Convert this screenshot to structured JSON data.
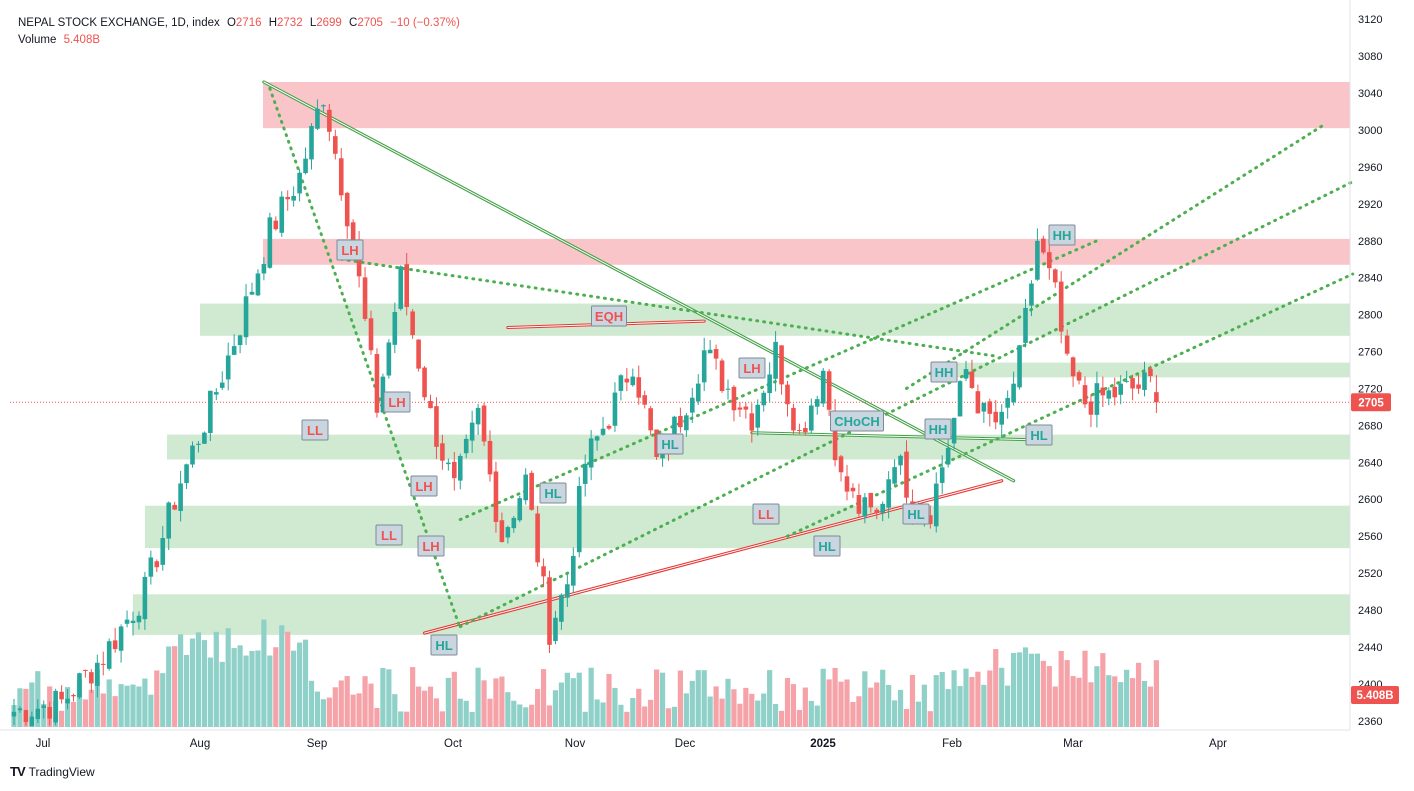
{
  "header": {
    "symbol": "NEPAL STOCK EXCHANGE, 1D, index",
    "open_label": "O",
    "open": "2716",
    "high_label": "H",
    "high": "2732",
    "low_label": "L",
    "low": "2699",
    "close_label": "C",
    "close": "2705",
    "change": "−10 (−0.37%)",
    "volume_label": "Volume",
    "volume_value": "5.408B"
  },
  "brand": {
    "name": "TradingView",
    "logo": "TV"
  },
  "colors": {
    "up": "#26a69a",
    "down": "#ef5350",
    "up_vol": "#8fd1c8",
    "down_vol": "#f5a3a8",
    "supply_zone": "#f8bbc0",
    "demand_zone": "#c8e6c9",
    "trend_green": "#43a047",
    "trend_red": "#e53935",
    "dotted_green": "#4caf50",
    "label_bg": "#c9d6e0",
    "price_tag": "#ef5350",
    "volume_tag": "#ef5350"
  },
  "chart_data": {
    "type": "candlestick",
    "title": "NEPAL STOCK EXCHANGE, 1D, index",
    "ylim": [
      2350,
      3130
    ],
    "y_ticks": [
      3120,
      3080,
      3040,
      3000,
      2960,
      2920,
      2880,
      2840,
      2800,
      2760,
      2720,
      2680,
      2640,
      2600,
      2560,
      2520,
      2480,
      2440,
      2400,
      2360
    ],
    "x_ticks": [
      "Jul",
      "Aug",
      "Sep",
      "Oct",
      "Nov",
      "Dec",
      "2025",
      "Feb",
      "Mar",
      "Apr"
    ],
    "last_price": "2705",
    "last_volume": "5.408B",
    "candle_count": 180,
    "anchors": [
      {
        "bar": 0,
        "price": 2370
      },
      {
        "bar": 8,
        "price": 2380
      },
      {
        "bar": 15,
        "price": 2430
      },
      {
        "bar": 22,
        "price": 2500
      },
      {
        "bar": 28,
        "price": 2620
      },
      {
        "bar": 33,
        "price": 2700
      },
      {
        "bar": 38,
        "price": 2790
      },
      {
        "bar": 43,
        "price": 2890
      },
      {
        "bar": 48,
        "price": 2950
      },
      {
        "bar": 52,
        "price": 3040
      },
      {
        "bar": 57,
        "price": 2880
      },
      {
        "bar": 61,
        "price": 2700
      },
      {
        "bar": 65,
        "price": 2840
      },
      {
        "bar": 70,
        "price": 2690
      },
      {
        "bar": 74,
        "price": 2610
      },
      {
        "bar": 78,
        "price": 2690
      },
      {
        "bar": 82,
        "price": 2560
      },
      {
        "bar": 86,
        "price": 2620
      },
      {
        "bar": 90,
        "price": 2460
      },
      {
        "bar": 93,
        "price": 2510
      },
      {
        "bar": 96,
        "price": 2640
      },
      {
        "bar": 100,
        "price": 2690
      },
      {
        "bar": 104,
        "price": 2750
      },
      {
        "bar": 108,
        "price": 2640
      },
      {
        "bar": 112,
        "price": 2690
      },
      {
        "bar": 116,
        "price": 2760
      },
      {
        "bar": 120,
        "price": 2720
      },
      {
        "bar": 124,
        "price": 2690
      },
      {
        "bar": 128,
        "price": 2760
      },
      {
        "bar": 132,
        "price": 2670
      },
      {
        "bar": 136,
        "price": 2740
      },
      {
        "bar": 139,
        "price": 2620
      },
      {
        "bar": 142,
        "price": 2590
      },
      {
        "bar": 145,
        "price": 2580
      },
      {
        "bar": 148,
        "price": 2650
      },
      {
        "bar": 151,
        "price": 2600
      },
      {
        "bar": 154,
        "price": 2590
      },
      {
        "bar": 157,
        "price": 2660
      },
      {
        "bar": 160,
        "price": 2740
      },
      {
        "bar": 163,
        "price": 2690
      },
      {
        "bar": 166,
        "price": 2680
      },
      {
        "bar": 169,
        "price": 2750
      },
      {
        "bar": 172,
        "price": 2880
      },
      {
        "bar": 175,
        "price": 2820
      },
      {
        "bar": 177,
        "price": 2740
      },
      {
        "bar": 180,
        "price": 2705
      }
    ],
    "zones": [
      {
        "type": "supply",
        "from": 3052,
        "to": 3002,
        "start_bar": 55
      },
      {
        "type": "supply",
        "from": 2882,
        "to": 2854,
        "start_bar": 55
      },
      {
        "type": "demand",
        "from": 2812,
        "to": 2777,
        "start_bar": 40
      },
      {
        "type": "demand",
        "from": 2748,
        "to": 2732,
        "start_bar": 162
      },
      {
        "type": "demand",
        "from": 2670,
        "to": 2643,
        "start_bar": 33
      },
      {
        "type": "demand",
        "from": 2593,
        "to": 2547,
        "start_bar": 29
      },
      {
        "type": "demand",
        "from": 2497,
        "to": 2453,
        "start_bar": 25
      }
    ],
    "annotations": [
      {
        "text": "LH",
        "bar": 66,
        "price": 2858,
        "color": "down"
      },
      {
        "text": "LL",
        "bar": 58,
        "price": 2680,
        "color": "down"
      },
      {
        "text": "LH",
        "bar": 73,
        "price": 2702,
        "color": "down"
      },
      {
        "text": "LH",
        "bar": 77,
        "price": 2625,
        "color": "down"
      },
      {
        "text": "LL",
        "bar": 71,
        "price": 2562,
        "color": "down"
      },
      {
        "text": "LH",
        "bar": 79,
        "price": 2563,
        "color": "down"
      },
      {
        "text": "HL",
        "bar": 82,
        "price": 2440,
        "color": "up"
      },
      {
        "text": "EQH",
        "bar": 112,
        "price": 2800,
        "color": "down"
      },
      {
        "text": "HL",
        "bar": 127,
        "price": 2657,
        "color": "up"
      },
      {
        "text": "HL",
        "bar": 104,
        "price": 2605,
        "color": "up"
      },
      {
        "text": "LH",
        "bar": 139,
        "price": 2730,
        "color": "down"
      },
      {
        "text": "LL",
        "bar": 142,
        "price": 2585,
        "color": "down"
      },
      {
        "text": "HL",
        "bar": 155,
        "price": 2560,
        "color": "up"
      },
      {
        "text": "CHoCH",
        "bar": 158,
        "price": 2685,
        "color": "up"
      },
      {
        "text": "HH",
        "bar": 175,
        "price": 2680,
        "color": "up"
      },
      {
        "text": "HL",
        "bar": 170,
        "price": 2583,
        "color": "up"
      },
      {
        "text": "HH",
        "bar": 177,
        "price": 2724,
        "color": "up"
      },
      {
        "text": "HL",
        "bar": 195,
        "price": 2666,
        "color": "up"
      },
      {
        "text": "HH",
        "bar": 198,
        "price": 2875,
        "color": "up"
      }
    ],
    "x_unit_note": "bar indices; 2025 year marker bold"
  }
}
